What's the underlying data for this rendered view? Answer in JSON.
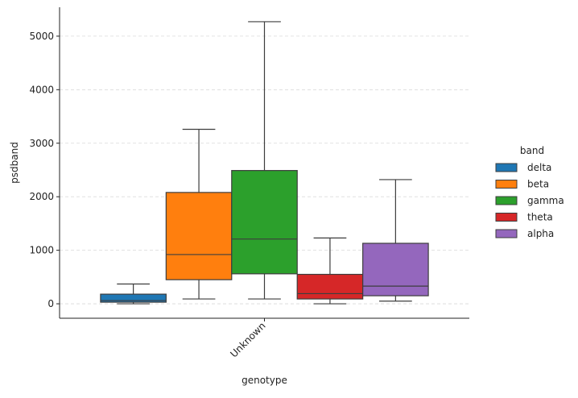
{
  "chart_data": {
    "type": "box",
    "xlabel": "genotype",
    "ylabel": "psdband",
    "categories": [
      "Unknown"
    ],
    "ylim": [
      -270,
      5540
    ],
    "yticks": [
      0,
      1000,
      2000,
      3000,
      4000,
      5000
    ],
    "grid": "horizontal-dashed",
    "legend": {
      "title": "band",
      "position": "right"
    },
    "series": [
      {
        "name": "delta",
        "color": "#1f77b4",
        "whislo": 0,
        "q1": 30,
        "med": 60,
        "q3": 180,
        "whishi": 370
      },
      {
        "name": "beta",
        "color": "#ff7f0e",
        "whislo": 90,
        "q1": 450,
        "med": 920,
        "q3": 2080,
        "whishi": 3260
      },
      {
        "name": "gamma",
        "color": "#2ca02c",
        "whislo": 90,
        "q1": 560,
        "med": 1210,
        "q3": 2490,
        "whishi": 5270
      },
      {
        "name": "theta",
        "color": "#d62728",
        "whislo": 0,
        "q1": 90,
        "med": 190,
        "q3": 550,
        "whishi": 1230
      },
      {
        "name": "alpha",
        "color": "#9467bd",
        "whislo": 50,
        "q1": 150,
        "med": 330,
        "q3": 1130,
        "whishi": 2320
      }
    ]
  }
}
